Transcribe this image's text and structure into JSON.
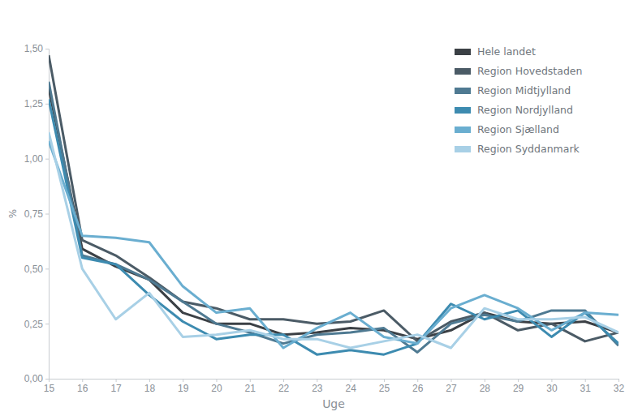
{
  "chart_data": {
    "type": "line",
    "x_label": "Uge",
    "y_label": "%",
    "x": [
      15,
      16,
      17,
      18,
      19,
      20,
      21,
      22,
      23,
      24,
      25,
      26,
      27,
      28,
      29,
      30,
      31,
      32
    ],
    "xlim": [
      15,
      32
    ],
    "xticks": [
      15,
      16,
      17,
      18,
      19,
      20,
      21,
      22,
      23,
      24,
      25,
      26,
      27,
      28,
      29,
      30,
      31,
      32
    ],
    "ylim": [
      0,
      1.5
    ],
    "yticks": [
      {
        "value": 0,
        "label": "0,00"
      },
      {
        "value": 0.25,
        "label": "0,25"
      },
      {
        "value": 0.5,
        "label": "0,50"
      },
      {
        "value": 0.75,
        "label": "0,75"
      },
      {
        "value": 1,
        "label": "1,00"
      },
      {
        "value": 1.25,
        "label": "1,25"
      },
      {
        "value": 1.5,
        "label": "1,50"
      }
    ],
    "grid": false,
    "legend": "upper right",
    "series": [
      {
        "name": "Hele landet",
        "color": "#3b4045",
        "values": [
          1.32,
          0.59,
          0.51,
          0.45,
          0.3,
          0.25,
          0.25,
          0.2,
          0.21,
          0.23,
          0.22,
          0.18,
          0.22,
          0.3,
          0.26,
          0.25,
          0.26,
          0.21
        ]
      },
      {
        "name": "Region Hovedstaden",
        "color": "#4b5b66",
        "values": [
          1.47,
          0.63,
          0.56,
          0.46,
          0.35,
          0.32,
          0.27,
          0.27,
          0.25,
          0.26,
          0.31,
          0.17,
          0.26,
          0.3,
          0.22,
          0.25,
          0.17,
          0.21
        ]
      },
      {
        "name": "Region Midtjylland",
        "color": "#4f7a92",
        "values": [
          1.35,
          0.56,
          0.52,
          0.45,
          0.35,
          0.25,
          0.21,
          0.16,
          0.2,
          0.21,
          0.23,
          0.12,
          0.25,
          0.29,
          0.26,
          0.31,
          0.31,
          0.15
        ]
      },
      {
        "name": "Region Nordjylland",
        "color": "#3d8bb0",
        "values": [
          1.27,
          0.55,
          0.52,
          0.38,
          0.26,
          0.18,
          0.2,
          0.2,
          0.11,
          0.13,
          0.11,
          0.16,
          0.34,
          0.27,
          0.31,
          0.19,
          0.3,
          0.16
        ]
      },
      {
        "name": "Region Sjælland",
        "color": "#6aaed0",
        "values": [
          1.08,
          0.65,
          0.64,
          0.62,
          0.42,
          0.3,
          0.32,
          0.14,
          0.23,
          0.3,
          0.19,
          0.16,
          0.32,
          0.38,
          0.32,
          0.22,
          0.3,
          0.29
        ]
      },
      {
        "name": "Region Syddanmark",
        "color": "#a8d0e6",
        "values": [
          1.12,
          0.5,
          0.27,
          0.39,
          0.19,
          0.2,
          0.22,
          0.18,
          0.18,
          0.14,
          0.17,
          0.2,
          0.14,
          0.32,
          0.27,
          0.27,
          0.28,
          0.21
        ]
      }
    ]
  }
}
